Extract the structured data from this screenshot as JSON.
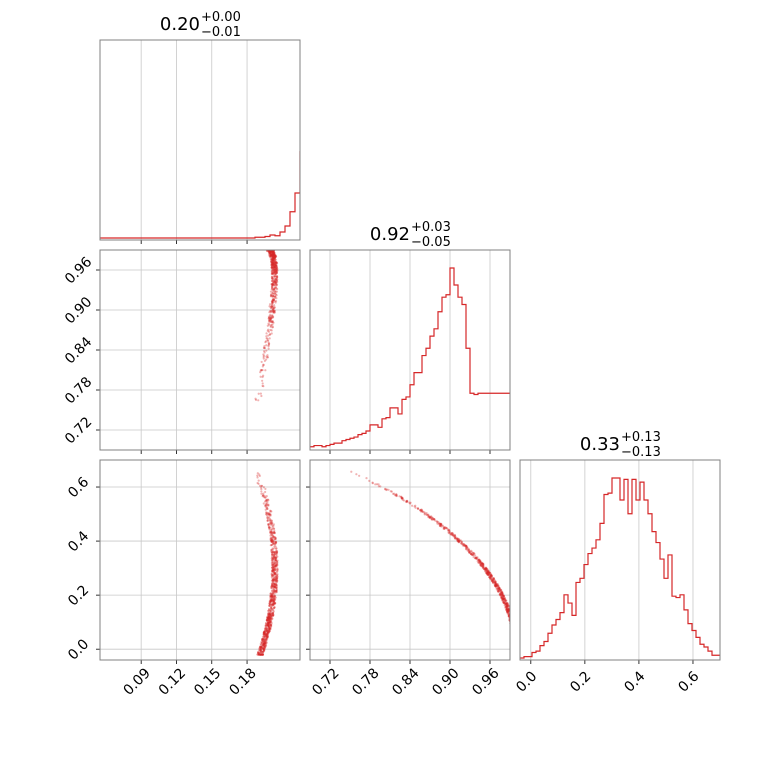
{
  "colors": {
    "accent": "#d62728",
    "grid": "#c8c8c8",
    "frame": "#808080"
  },
  "chart_data": {
    "type": "corner",
    "grid": true,
    "parameters": [
      {
        "range": [
          0.055,
          0.225
        ],
        "ticks": [
          0.09,
          0.12,
          0.15,
          0.18
        ],
        "tick_labels": [
          "0.09",
          "0.12",
          "0.15",
          "0.18"
        ],
        "title": {
          "value": "0.20",
          "plus": "+0.00",
          "minus": "−0.01"
        },
        "histogram": {
          "edges_start": 0.055,
          "bin_width": 0.00425,
          "counts": [
            0,
            0,
            0,
            0,
            0,
            0,
            0,
            0,
            0,
            0,
            0,
            0,
            0,
            0,
            0,
            0,
            0,
            0,
            0,
            0,
            0,
            0,
            0,
            0,
            0,
            0,
            0,
            0,
            0,
            0,
            0,
            1,
            1,
            2,
            4,
            3,
            8,
            16,
            35,
            60,
            115,
            170,
            225,
            240
          ]
        }
      },
      {
        "range": [
          0.69,
          0.99
        ],
        "ticks": [
          0.72,
          0.78,
          0.84,
          0.9,
          0.96
        ],
        "tick_labels": [
          "0.72",
          "0.78",
          "0.84",
          "0.90",
          "0.96"
        ],
        "title": {
          "value": "0.92",
          "plus": "+0.03",
          "minus": "−0.05"
        },
        "histogram": {
          "edges_start": 0.69,
          "bin_width": 0.006,
          "counts": [
            1,
            2,
            2,
            1,
            2,
            3,
            4,
            4,
            6,
            7,
            8,
            9,
            11,
            12,
            14,
            19,
            19,
            17,
            24,
            25,
            33,
            33,
            28,
            40,
            42,
            52,
            62,
            62,
            76,
            82,
            92,
            98,
            112,
            124,
            126,
            148,
            134,
            124,
            118,
            82,
            45,
            44,
            45,
            45,
            45,
            45,
            45,
            45,
            45,
            45
          ]
        }
      },
      {
        "range": [
          -0.04,
          0.7
        ],
        "ticks": [
          0.0,
          0.2,
          0.4,
          0.6
        ],
        "tick_labels": [
          "0.0",
          "0.2",
          "0.4",
          "0.6"
        ],
        "title": {
          "value": "0.33",
          "plus": "+0.13",
          "minus": "−0.13"
        },
        "histogram": {
          "edges_start": -0.04,
          "bin_width": 0.0148,
          "counts": [
            0,
            1,
            1,
            4,
            5,
            9,
            12,
            18,
            24,
            28,
            33,
            46,
            40,
            31,
            55,
            58,
            68,
            76,
            80,
            86,
            98,
            119,
            120,
            131,
            131,
            115,
            130,
            105,
            130,
            115,
            128,
            115,
            105,
            92,
            84,
            72,
            58,
            75,
            45,
            44,
            46,
            35,
            25,
            20,
            15,
            10,
            8,
            5,
            2,
            2
          ]
        }
      }
    ]
  }
}
